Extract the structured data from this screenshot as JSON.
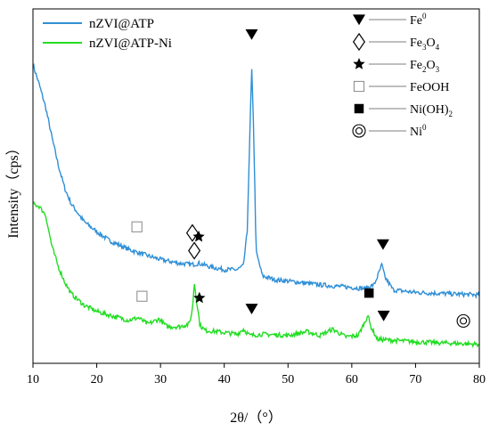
{
  "chart_data": {
    "type": "line",
    "xlabel": "2θ/（°）",
    "ylabel": "Intensity（cps）",
    "xlim": [
      10,
      80
    ],
    "xticks": [
      10,
      20,
      30,
      40,
      50,
      60,
      70,
      80
    ],
    "y_ticks_shown": false,
    "grid": false,
    "legend_position": "top-left",
    "series": [
      {
        "name": "nZVI@ATP",
        "color": "#2f8fd6",
        "x": [
          10,
          11,
          12,
          13,
          14,
          15,
          16,
          18,
          20,
          22,
          25,
          28,
          30,
          33,
          35,
          36,
          38,
          40,
          42,
          43,
          43.6,
          44.0,
          44.3,
          44.6,
          45.0,
          46,
          48,
          50,
          55,
          60,
          62,
          63.5,
          64.3,
          64.7,
          65.2,
          66.5,
          70,
          75,
          80
        ],
        "y": [
          10.8,
          10.0,
          9.1,
          7.9,
          6.8,
          5.9,
          5.3,
          4.6,
          4.2,
          3.85,
          3.5,
          3.25,
          3.1,
          2.95,
          2.9,
          2.95,
          2.8,
          2.7,
          2.7,
          2.85,
          4.2,
          7.9,
          10.7,
          8.3,
          3.4,
          2.45,
          2.3,
          2.25,
          2.1,
          2.0,
          1.95,
          2.1,
          2.6,
          2.9,
          2.4,
          1.9,
          1.8,
          1.75,
          1.7
        ]
      },
      {
        "name": "nZVI@ATP-Ni",
        "color": "#22dd22",
        "x": [
          10,
          11,
          12,
          12.5,
          13,
          14,
          15,
          16,
          18,
          20,
          22,
          25,
          26.5,
          28,
          29.8,
          31,
          33,
          34.5,
          35.0,
          35.3,
          35.7,
          36.2,
          37,
          39,
          42,
          43,
          44,
          46,
          50,
          53,
          55,
          57,
          59,
          61,
          62.2,
          62.5,
          62.9,
          64,
          67,
          70,
          75,
          80
        ],
        "y": [
          5.3,
          5.2,
          4.85,
          4.2,
          3.6,
          2.8,
          2.2,
          1.75,
          1.3,
          1.05,
          0.9,
          0.7,
          0.8,
          0.55,
          0.75,
          0.45,
          0.45,
          0.55,
          1.1,
          2.2,
          1.4,
          0.5,
          0.3,
          0.25,
          0.15,
          0.35,
          0.1,
          0.15,
          0.1,
          0.25,
          0.1,
          0.35,
          0.05,
          0.1,
          0.7,
          0.95,
          0.5,
          -0.05,
          -0.1,
          -0.15,
          -0.2,
          -0.25
        ]
      }
    ],
    "phase_legend": [
      {
        "marker": "triangle-down",
        "label": "Fe",
        "sup": "0"
      },
      {
        "marker": "diamond-open",
        "label": "Fe",
        "sub1": "3",
        "mid": "O",
        "sub2": "4"
      },
      {
        "marker": "star",
        "label": "Fe",
        "sub1": "2",
        "mid": "O",
        "sub2": "3"
      },
      {
        "marker": "square-open",
        "label": "FeOOH"
      },
      {
        "marker": "square-filled",
        "label": "Ni(OH)",
        "sub1": "2"
      },
      {
        "marker": "double-circle",
        "label": "Ni",
        "sup": "0"
      }
    ],
    "annotations": [
      {
        "marker": "triangle-down",
        "x": 44.3,
        "series": 0,
        "offset": 1.3
      },
      {
        "marker": "triangle-down",
        "x": 64.9,
        "series": 0,
        "offset": 1.0
      },
      {
        "marker": "square-open",
        "x": 26.3,
        "series": 0,
        "offset": 1.0
      },
      {
        "marker": "diamond-open",
        "x": 35.0,
        "series": 0,
        "offset": 1.25
      },
      {
        "marker": "star",
        "x": 36.0,
        "series": 0,
        "offset": 1.05
      },
      {
        "marker": "square-open",
        "x": 27.1,
        "series": 1,
        "offset": 0.95
      },
      {
        "marker": "diamond-open",
        "x": 35.3,
        "series": 1,
        "offset": 1.25
      },
      {
        "marker": "star",
        "x": 36.1,
        "series": 1,
        "offset": 0.9
      },
      {
        "marker": "triangle-down",
        "x": 44.3,
        "series": 1,
        "offset": 1.05
      },
      {
        "marker": "triangle-down",
        "x": 65.0,
        "series": 1,
        "offset": 0.95
      },
      {
        "marker": "square-filled",
        "x": 62.7,
        "series": 1,
        "offset": 1.05
      },
      {
        "marker": "double-circle",
        "x": 77.5,
        "series": 1,
        "offset": 0.9
      }
    ]
  }
}
